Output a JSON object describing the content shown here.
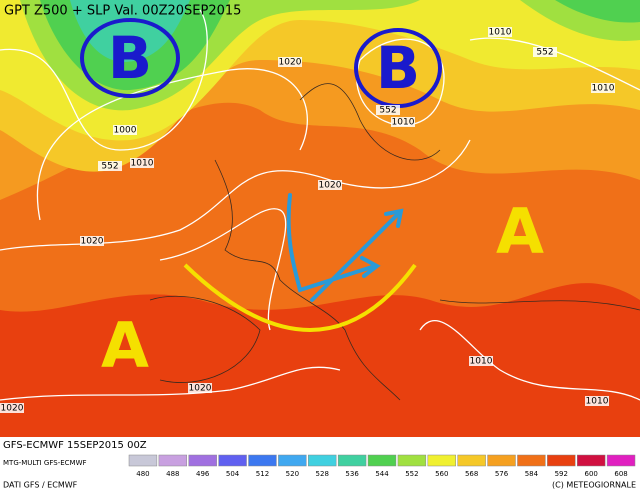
{
  "header": {
    "title": "GPT Z500 + SLP Val. 00Z20SEP2015"
  },
  "pressure_systems": [
    {
      "label": "B",
      "kind": "low"
    },
    {
      "label": "B",
      "kind": "low"
    },
    {
      "label": "A",
      "kind": "high"
    },
    {
      "label": "A",
      "kind": "high"
    }
  ],
  "contour_labels": [
    1010,
    552,
    1010,
    1020,
    1000,
    552,
    1010,
    552,
    1010,
    1020,
    1020,
    1010,
    1020,
    1020,
    1010
  ],
  "footer": {
    "run": "GFS-ECMWF 15SEP2015 00Z",
    "model": "MTG-MULTI GFS-ECMWF",
    "source": "DATI GFS / ECMWF",
    "copyright": "(C) METEOGIORNALE"
  },
  "color_scale": {
    "ticks": [
      480,
      488,
      496,
      504,
      512,
      520,
      528,
      536,
      544,
      552,
      560,
      568,
      576,
      584,
      592,
      600,
      608
    ],
    "colors": [
      "#c8c8d8",
      "#c8a0e0",
      "#a070e0",
      "#6060f0",
      "#3c78f0",
      "#40a8f0",
      "#40d0e0",
      "#40d0a0",
      "#50d050",
      "#a0e040",
      "#f0f030",
      "#f5c828",
      "#f5a020",
      "#f07018",
      "#e84010",
      "#d01040",
      "#e020c0"
    ]
  }
}
